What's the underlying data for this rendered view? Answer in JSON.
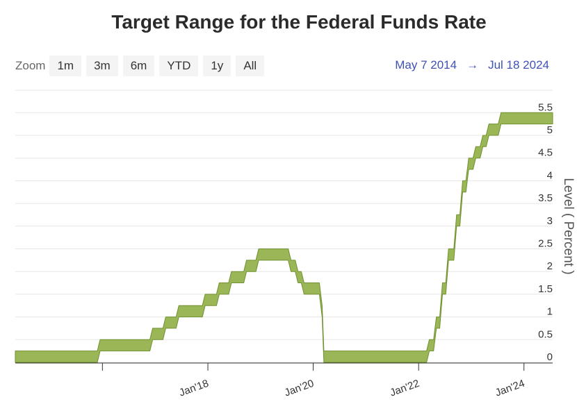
{
  "title": "Target Range for the Federal Funds Rate",
  "toolbar": {
    "zoom_label": "Zoom",
    "buttons": [
      "1m",
      "3m",
      "6m",
      "YTD",
      "1y",
      "All"
    ]
  },
  "date_range": {
    "from": "May 7 2014",
    "arrow": "→",
    "to": "Jul 18 2024"
  },
  "colors": {
    "fill": "#9bb657",
    "stroke": "#6f9131",
    "link": "#3f51b5"
  },
  "chart_data": {
    "type": "area",
    "title": "Target Range for the Federal Funds Rate",
    "ylabel": "Level ( Percent )",
    "xlabel": "",
    "ylim": [
      0,
      5.5
    ],
    "yticks": [
      "0",
      "0.5",
      "1",
      "1.5",
      "2",
      "2.5",
      "3",
      "3.5",
      "4",
      "4.5",
      "5",
      "5.5"
    ],
    "xticks": [
      "Jan'18",
      "Jan'20",
      "Jan'22",
      "Jan'24"
    ],
    "x_range": [
      "2014-05-07",
      "2024-07-18"
    ],
    "grid": true,
    "series": [
      {
        "name": "",
        "kind": "range",
        "x": [
          "2014-05-07",
          "2015-12-16",
          "2016-12-14",
          "2017-03-15",
          "2017-06-14",
          "2017-12-13",
          "2018-03-21",
          "2018-06-13",
          "2018-09-26",
          "2018-12-19",
          "2019-07-31",
          "2019-09-18",
          "2019-10-30",
          "2020-03-03",
          "2020-03-15",
          "2022-03-16",
          "2022-05-04",
          "2022-06-15",
          "2022-07-27",
          "2022-09-21",
          "2022-11-02",
          "2022-12-14",
          "2023-02-01",
          "2023-03-22",
          "2023-05-03",
          "2023-07-26",
          "2024-07-18"
        ],
        "low": [
          0,
          0.25,
          0.5,
          0.75,
          1.0,
          1.25,
          1.5,
          1.75,
          2.0,
          2.25,
          2.0,
          1.75,
          1.5,
          1.0,
          0,
          0.25,
          0.75,
          1.5,
          2.25,
          3.0,
          3.75,
          4.25,
          4.5,
          4.75,
          5.0,
          5.25,
          5.25
        ],
        "high": [
          0.25,
          0.5,
          0.75,
          1.0,
          1.25,
          1.5,
          1.75,
          2.0,
          2.25,
          2.5,
          2.25,
          2.0,
          1.75,
          1.25,
          0.25,
          0.5,
          1.0,
          1.75,
          2.5,
          3.25,
          4.0,
          4.5,
          4.75,
          5.0,
          5.25,
          5.5,
          5.5
        ]
      }
    ]
  }
}
